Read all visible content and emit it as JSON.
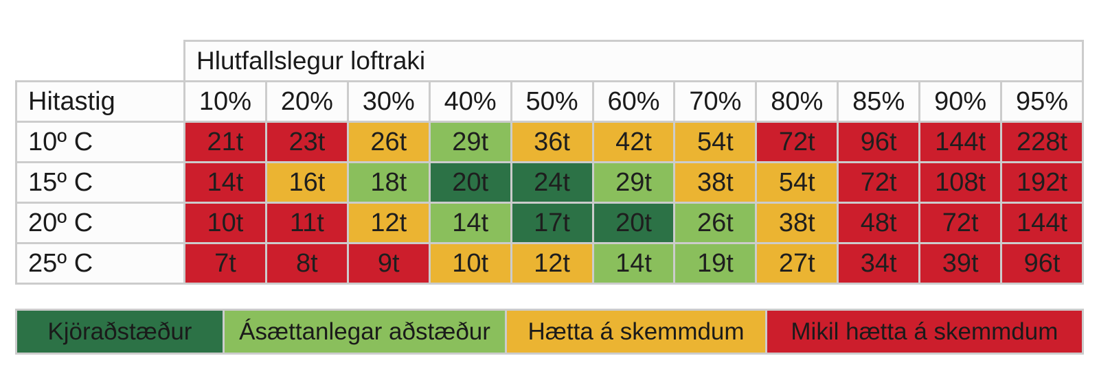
{
  "chart_data": {
    "type": "heatmap",
    "title": "",
    "column_group_label": "Hlutfallslegur loftraki",
    "row_header_label": "Hitastig",
    "columns": [
      "10%",
      "20%",
      "30%",
      "40%",
      "50%",
      "60%",
      "70%",
      "80%",
      "85%",
      "90%",
      "95%"
    ],
    "rows": [
      {
        "label": "10º C",
        "values": [
          "21t",
          "23t",
          "26t",
          "29t",
          "36t",
          "42t",
          "54t",
          "72t",
          "96t",
          "144t",
          "228t"
        ],
        "levels": [
          3,
          3,
          2,
          1,
          2,
          2,
          2,
          3,
          3,
          3,
          3
        ]
      },
      {
        "label": "15º C",
        "values": [
          "14t",
          "16t",
          "18t",
          "20t",
          "24t",
          "29t",
          "38t",
          "54t",
          "72t",
          "108t",
          "192t"
        ],
        "levels": [
          3,
          2,
          1,
          0,
          0,
          1,
          2,
          2,
          3,
          3,
          3
        ]
      },
      {
        "label": "20º C",
        "values": [
          "10t",
          "11t",
          "12t",
          "14t",
          "17t",
          "20t",
          "26t",
          "38t",
          "48t",
          "72t",
          "144t"
        ],
        "levels": [
          3,
          3,
          2,
          1,
          0,
          0,
          1,
          2,
          3,
          3,
          3
        ]
      },
      {
        "label": "25º C",
        "values": [
          "7t",
          "8t",
          "9t",
          "10t",
          "12t",
          "14t",
          "19t",
          "27t",
          "34t",
          "39t",
          "96t"
        ],
        "levels": [
          3,
          3,
          3,
          2,
          2,
          1,
          1,
          2,
          3,
          3,
          3
        ]
      }
    ],
    "legend": [
      {
        "label": "Kjöraðstæður",
        "color": "#2c7246"
      },
      {
        "label": "Ásættanlegar aðstæður",
        "color": "#8abf5c"
      },
      {
        "label": "Hætta á skemmdum",
        "color": "#ebb432"
      },
      {
        "label": "Mikil hætta á skemmdum",
        "color": "#cc1e2c"
      }
    ],
    "legend_position": "bottom"
  }
}
